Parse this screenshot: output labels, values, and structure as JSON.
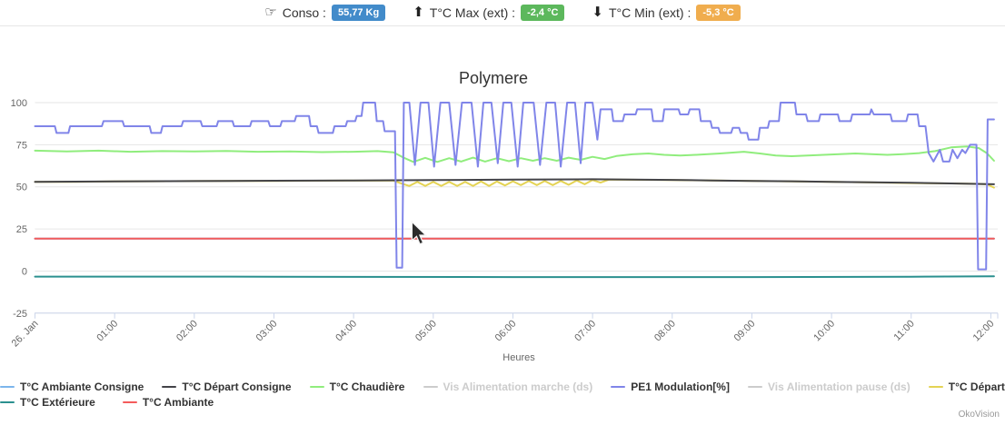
{
  "header": {
    "conso": {
      "icon_glyph": "☞",
      "label": "Conso :",
      "value": "55,77 Kg",
      "badge_color": "#428bca"
    },
    "tmax": {
      "icon_glyph": "⬆",
      "label": "T°C Max (ext) :",
      "value": "-2,4 °C",
      "badge_color": "#5cb85c"
    },
    "tmin": {
      "icon_glyph": "⬇",
      "label": "T°C Min (ext) :",
      "value": "-5,3 °C",
      "badge_color": "#f0ad4e"
    }
  },
  "credits": "OkoVision",
  "chart_data": {
    "type": "line",
    "title": "Polymere",
    "xlabel": "Heures",
    "ylabel": "",
    "x_ticks": [
      "26. Jan",
      "01:00",
      "02:00",
      "03:00",
      "04:00",
      "05:00",
      "06:00",
      "07:00",
      "08:00",
      "09:00",
      "10:00",
      "11:00",
      "12:00"
    ],
    "x_tick_hours": [
      0,
      1,
      2,
      3,
      4,
      5,
      6,
      7,
      8,
      9,
      10,
      11,
      12
    ],
    "y_ticks": [
      -25,
      0,
      25,
      50,
      75,
      100
    ],
    "ylim": [
      -25,
      100
    ],
    "xlim_hours": [
      0,
      12.09
    ],
    "grid": "horizontal",
    "legend_position": "bottom",
    "legend_rows": [
      [
        0,
        1,
        2,
        3,
        4,
        5,
        6
      ],
      [
        7,
        8
      ]
    ],
    "series": [
      {
        "name": "T°C Ambiante Consigne",
        "color": "#7cb5ec",
        "z": 1,
        "points": [
          [
            0,
            19.2
          ],
          [
            12.04,
            19.2
          ]
        ]
      },
      {
        "name": "T°C Départ Consigne",
        "color": "#434348",
        "z": 5,
        "points": [
          [
            0,
            53
          ],
          [
            1,
            53.2
          ],
          [
            2,
            53.4
          ],
          [
            3,
            53.6
          ],
          [
            4,
            53.8
          ],
          [
            5,
            54
          ],
          [
            6,
            54.3
          ],
          [
            7,
            54.5
          ],
          [
            7.5,
            54.3
          ],
          [
            8,
            54.1
          ],
          [
            8.5,
            53.8
          ],
          [
            9,
            53.5
          ],
          [
            9.5,
            53.3
          ],
          [
            10,
            53
          ],
          [
            10.5,
            52.7
          ],
          [
            11,
            52.4
          ],
          [
            11.5,
            52
          ],
          [
            12.04,
            51.5
          ]
        ]
      },
      {
        "name": "T°C Chaudière",
        "color": "#90ed7d",
        "z": 3,
        "points": [
          [
            0,
            71.5
          ],
          [
            0.4,
            71
          ],
          [
            0.8,
            71.5
          ],
          [
            1.2,
            70.8
          ],
          [
            1.6,
            71.2
          ],
          [
            2,
            71
          ],
          [
            2.4,
            71.3
          ],
          [
            2.8,
            70.8
          ],
          [
            3.2,
            71
          ],
          [
            3.6,
            70.6
          ],
          [
            4,
            70.8
          ],
          [
            4.3,
            71.2
          ],
          [
            4.5,
            70.5
          ],
          [
            4.62,
            67.5
          ],
          [
            4.75,
            64.8
          ],
          [
            4.9,
            67.2
          ],
          [
            5.05,
            64.8
          ],
          [
            5.2,
            67
          ],
          [
            5.35,
            65
          ],
          [
            5.5,
            67.3
          ],
          [
            5.65,
            65
          ],
          [
            5.8,
            67
          ],
          [
            5.95,
            65.2
          ],
          [
            6.1,
            67
          ],
          [
            6.25,
            65.5
          ],
          [
            6.4,
            67
          ],
          [
            6.55,
            65.5
          ],
          [
            6.7,
            67.3
          ],
          [
            6.85,
            66
          ],
          [
            7,
            67.8
          ],
          [
            7.15,
            66.5
          ],
          [
            7.3,
            68.3
          ],
          [
            7.5,
            69.3
          ],
          [
            7.7,
            69.8
          ],
          [
            7.9,
            69
          ],
          [
            8.1,
            68.6
          ],
          [
            8.3,
            69
          ],
          [
            8.6,
            69.8
          ],
          [
            8.9,
            70.8
          ],
          [
            9.1,
            69.8
          ],
          [
            9.3,
            68.6
          ],
          [
            9.5,
            68.2
          ],
          [
            9.7,
            68.6
          ],
          [
            9.9,
            69
          ],
          [
            10.1,
            69.4
          ],
          [
            10.3,
            69.8
          ],
          [
            10.5,
            69.4
          ],
          [
            10.7,
            69
          ],
          [
            10.9,
            69.4
          ],
          [
            11.1,
            70
          ],
          [
            11.3,
            71.2
          ],
          [
            11.5,
            73.4
          ],
          [
            11.7,
            74
          ],
          [
            11.85,
            73
          ],
          [
            11.95,
            70
          ],
          [
            12.04,
            65.5
          ]
        ]
      },
      {
        "name": "Vis Alimentation marche (ds)",
        "color": "#f7a35c",
        "z": 0,
        "enabled": false,
        "points": []
      },
      {
        "name": "PE1 Modulation[%]",
        "color": "#8085e9",
        "z": 7,
        "points": [
          [
            0,
            86
          ],
          [
            0.25,
            86
          ],
          [
            0.27,
            82
          ],
          [
            0.42,
            82
          ],
          [
            0.44,
            86
          ],
          [
            0.84,
            86
          ],
          [
            0.86,
            89
          ],
          [
            1.1,
            89
          ],
          [
            1.12,
            86
          ],
          [
            1.44,
            86
          ],
          [
            1.46,
            82
          ],
          [
            1.58,
            82
          ],
          [
            1.6,
            86
          ],
          [
            1.84,
            86
          ],
          [
            1.86,
            89
          ],
          [
            2.08,
            89
          ],
          [
            2.1,
            86
          ],
          [
            2.28,
            86
          ],
          [
            2.3,
            89
          ],
          [
            2.48,
            89
          ],
          [
            2.5,
            86
          ],
          [
            2.7,
            86
          ],
          [
            2.72,
            89
          ],
          [
            2.93,
            89
          ],
          [
            2.95,
            86
          ],
          [
            3.08,
            86
          ],
          [
            3.1,
            89
          ],
          [
            3.26,
            89
          ],
          [
            3.28,
            92
          ],
          [
            3.44,
            92
          ],
          [
            3.46,
            86
          ],
          [
            3.54,
            86
          ],
          [
            3.56,
            82
          ],
          [
            3.74,
            82
          ],
          [
            3.76,
            86
          ],
          [
            3.9,
            86
          ],
          [
            3.92,
            89
          ],
          [
            4.02,
            89
          ],
          [
            4.04,
            92
          ],
          [
            4.1,
            92
          ],
          [
            4.12,
            100
          ],
          [
            4.27,
            100
          ],
          [
            4.29,
            89
          ],
          [
            4.37,
            89
          ],
          [
            4.39,
            83
          ],
          [
            4.52,
            83
          ],
          [
            4.54,
            2
          ],
          [
            4.61,
            2
          ],
          [
            4.63,
            100
          ],
          [
            4.7,
            100
          ],
          [
            4.77,
            63
          ],
          [
            4.84,
            100
          ],
          [
            4.94,
            100
          ],
          [
            5.01,
            62
          ],
          [
            5.09,
            100
          ],
          [
            5.2,
            100
          ],
          [
            5.28,
            63
          ],
          [
            5.36,
            100
          ],
          [
            5.48,
            100
          ],
          [
            5.56,
            62
          ],
          [
            5.63,
            100
          ],
          [
            5.73,
            100
          ],
          [
            5.81,
            64
          ],
          [
            5.88,
            100
          ],
          [
            5.98,
            100
          ],
          [
            6.06,
            62
          ],
          [
            6.13,
            100
          ],
          [
            6.26,
            100
          ],
          [
            6.34,
            63
          ],
          [
            6.42,
            100
          ],
          [
            6.53,
            100
          ],
          [
            6.6,
            62
          ],
          [
            6.68,
            100
          ],
          [
            6.78,
            100
          ],
          [
            6.85,
            64
          ],
          [
            6.91,
            100
          ],
          [
            7,
            100
          ],
          [
            7.06,
            78
          ],
          [
            7.1,
            96
          ],
          [
            7.24,
            96
          ],
          [
            7.26,
            89
          ],
          [
            7.38,
            89
          ],
          [
            7.4,
            93
          ],
          [
            7.54,
            93
          ],
          [
            7.56,
            96
          ],
          [
            7.74,
            96
          ],
          [
            7.76,
            89
          ],
          [
            7.88,
            89
          ],
          [
            7.9,
            96
          ],
          [
            8.08,
            96
          ],
          [
            8.1,
            93
          ],
          [
            8.2,
            93
          ],
          [
            8.22,
            96
          ],
          [
            8.34,
            96
          ],
          [
            8.36,
            89
          ],
          [
            8.48,
            89
          ],
          [
            8.5,
            85
          ],
          [
            8.58,
            85
          ],
          [
            8.6,
            82
          ],
          [
            8.74,
            82
          ],
          [
            8.76,
            85
          ],
          [
            8.84,
            85
          ],
          [
            8.86,
            82
          ],
          [
            8.94,
            82
          ],
          [
            8.96,
            78
          ],
          [
            9.08,
            78
          ],
          [
            9.1,
            85
          ],
          [
            9.2,
            85
          ],
          [
            9.22,
            89
          ],
          [
            9.34,
            89
          ],
          [
            9.36,
            100
          ],
          [
            9.54,
            100
          ],
          [
            9.56,
            93
          ],
          [
            9.68,
            93
          ],
          [
            9.7,
            89
          ],
          [
            9.84,
            89
          ],
          [
            9.86,
            93
          ],
          [
            10.08,
            93
          ],
          [
            10.1,
            89
          ],
          [
            10.24,
            89
          ],
          [
            10.26,
            93
          ],
          [
            10.48,
            93
          ],
          [
            10.5,
            96
          ],
          [
            10.53,
            93
          ],
          [
            10.74,
            93
          ],
          [
            10.76,
            89
          ],
          [
            10.94,
            89
          ],
          [
            10.96,
            93
          ],
          [
            11.08,
            93
          ],
          [
            11.1,
            86
          ],
          [
            11.18,
            86
          ],
          [
            11.22,
            70
          ],
          [
            11.28,
            65
          ],
          [
            11.36,
            72
          ],
          [
            11.4,
            65
          ],
          [
            11.48,
            65
          ],
          [
            11.52,
            72
          ],
          [
            11.58,
            67
          ],
          [
            11.64,
            72
          ],
          [
            11.68,
            70
          ],
          [
            11.74,
            75
          ],
          [
            11.82,
            75
          ],
          [
            11.84,
            1
          ],
          [
            11.94,
            1
          ],
          [
            11.96,
            90
          ],
          [
            12.04,
            90
          ]
        ]
      },
      {
        "name": "Vis Alimentation pause (ds)",
        "color": "#f15c80",
        "z": 0,
        "enabled": false,
        "points": []
      },
      {
        "name": "T°C Départ",
        "color": "#e4d354",
        "z": 4,
        "points": [
          [
            0,
            53
          ],
          [
            0.5,
            53
          ],
          [
            1,
            53.2
          ],
          [
            1.5,
            53.3
          ],
          [
            2,
            53.4
          ],
          [
            2.5,
            53.5
          ],
          [
            3,
            53.5
          ],
          [
            3.5,
            53.6
          ],
          [
            4,
            53.7
          ],
          [
            4.5,
            53.7
          ],
          [
            4.6,
            52
          ],
          [
            4.7,
            50.5
          ],
          [
            4.8,
            53
          ],
          [
            4.9,
            50.5
          ],
          [
            5,
            53
          ],
          [
            5.1,
            50.5
          ],
          [
            5.2,
            53
          ],
          [
            5.3,
            50.5
          ],
          [
            5.4,
            53
          ],
          [
            5.5,
            50.5
          ],
          [
            5.6,
            53.2
          ],
          [
            5.7,
            50.5
          ],
          [
            5.8,
            53.2
          ],
          [
            5.9,
            50.8
          ],
          [
            6,
            53.3
          ],
          [
            6.1,
            51
          ],
          [
            6.2,
            53.5
          ],
          [
            6.3,
            51
          ],
          [
            6.4,
            53.5
          ],
          [
            6.5,
            51
          ],
          [
            6.6,
            53.5
          ],
          [
            6.7,
            51.2
          ],
          [
            6.8,
            53.8
          ],
          [
            6.9,
            51.5
          ],
          [
            7,
            54
          ],
          [
            7.1,
            52.5
          ],
          [
            7.2,
            54.2
          ],
          [
            7.4,
            54.2
          ],
          [
            8,
            54
          ],
          [
            8.5,
            53.8
          ],
          [
            9,
            53.5
          ],
          [
            9.5,
            53.2
          ],
          [
            10,
            53
          ],
          [
            10.5,
            52.6
          ],
          [
            11,
            52.2
          ],
          [
            11.5,
            52
          ],
          [
            11.8,
            51.8
          ],
          [
            11.95,
            51.5
          ],
          [
            12.04,
            49.5
          ]
        ]
      },
      {
        "name": "T°C Extérieure",
        "color": "#2b908f",
        "z": 2,
        "points": [
          [
            0,
            -3.3
          ],
          [
            3,
            -3.4
          ],
          [
            6,
            -3.6
          ],
          [
            9,
            -3.6
          ],
          [
            11,
            -3.4
          ],
          [
            12.04,
            -3.1
          ]
        ]
      },
      {
        "name": "T°C Ambiante",
        "color": "#f45b5b",
        "z": 6,
        "points": [
          [
            0,
            19.2
          ],
          [
            12.04,
            19.2
          ]
        ]
      }
    ]
  }
}
